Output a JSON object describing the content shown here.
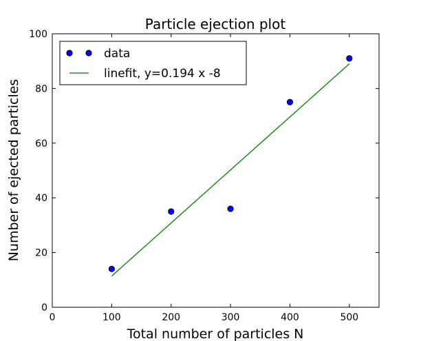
{
  "chart_data": {
    "type": "scatter",
    "title": "Particle ejection plot",
    "xlabel": "Total number of particles N",
    "ylabel": "Number of ejected particles",
    "xlim": [
      0,
      550
    ],
    "ylim": [
      0,
      100
    ],
    "xticks": [
      0,
      100,
      200,
      300,
      400,
      500
    ],
    "yticks": [
      0,
      20,
      40,
      60,
      80,
      100
    ],
    "grid": false,
    "legend_position": "upper-left",
    "series": [
      {
        "name": "data",
        "kind": "points",
        "color": "#0000ff",
        "x": [
          100,
          200,
          300,
          400,
          500
        ],
        "y": [
          14,
          35,
          36,
          75,
          91
        ]
      },
      {
        "name": "linefit, y=0.194 x -8",
        "kind": "line",
        "color": "#008000",
        "x": [
          100,
          500
        ],
        "y": [
          11.4,
          89
        ]
      }
    ]
  }
}
